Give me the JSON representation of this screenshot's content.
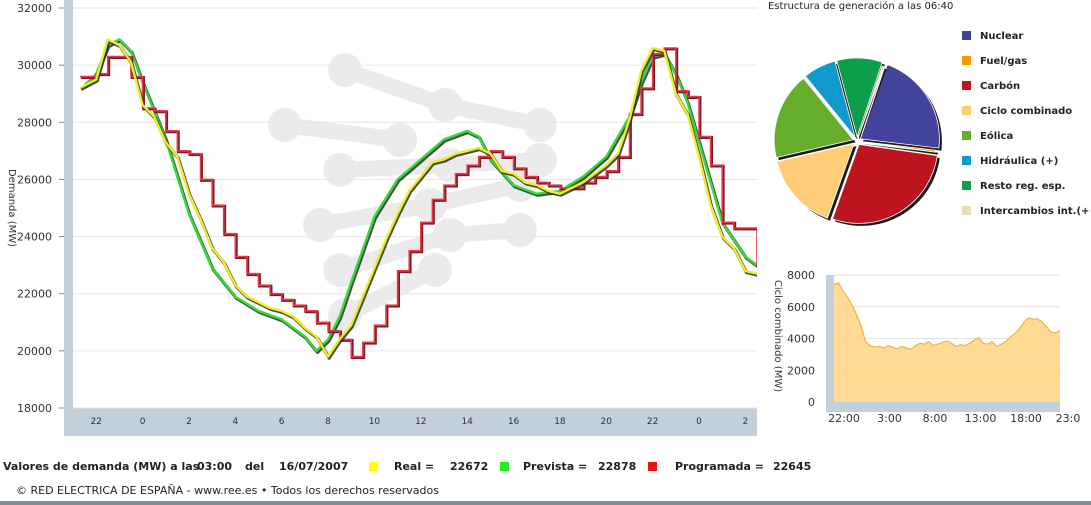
{
  "chart_data": [
    {
      "type": "line",
      "ylabel": "Demanda (MW)",
      "ylim": [
        18000,
        32000
      ],
      "yticks": [
        18000,
        20000,
        22000,
        24000,
        26000,
        28000,
        30000,
        32000
      ],
      "xlim": [
        21,
        50.5
      ],
      "xtick_positions": [
        22,
        24,
        26,
        28,
        30,
        32,
        34,
        36,
        38,
        40,
        42,
        44,
        46,
        48,
        50
      ],
      "xtick_labels": [
        "22",
        "0",
        "2",
        "4",
        "6",
        "8",
        "10",
        "12",
        "14",
        "16",
        "18",
        "20",
        "22",
        "0",
        "2"
      ],
      "series": [
        {
          "name": "Prevista",
          "color": "#33dd33",
          "x": [
            21.5,
            22,
            22.5,
            23,
            23.5,
            24,
            24.5,
            25,
            26,
            27,
            28,
            29,
            30,
            31,
            31.5,
            32,
            32.5,
            33,
            34,
            35,
            36,
            37,
            38,
            38.5,
            39,
            40,
            41,
            42,
            43,
            44,
            45,
            45.5,
            46,
            46.5,
            47,
            47.5,
            48,
            48.5,
            49,
            50,
            50.5
          ],
          "y": [
            29300,
            29700,
            30700,
            30900,
            30500,
            29400,
            28400,
            27400,
            24800,
            22900,
            21900,
            21400,
            21100,
            20500,
            20000,
            20400,
            21200,
            22400,
            24700,
            26000,
            26700,
            27400,
            27700,
            27500,
            26700,
            25800,
            25500,
            25600,
            26100,
            26800,
            28200,
            29400,
            30300,
            30400,
            29700,
            28700,
            27300,
            25900,
            24500,
            23300,
            23000
          ]
        },
        {
          "name": "Programada",
          "color": "#e8394b",
          "step": true,
          "x": [
            21.3,
            22,
            22.5,
            23.5,
            24,
            24.5,
            25,
            25.5,
            26,
            26.5,
            27,
            27.5,
            28,
            28.5,
            29,
            29.5,
            30,
            30.5,
            31,
            31.5,
            32,
            32.5,
            33,
            33.5,
            34,
            34.5,
            35,
            35.5,
            36,
            36.5,
            37,
            37.5,
            38,
            38.5,
            39,
            39.5,
            40,
            40.5,
            41,
            41.5,
            42,
            42.5,
            43,
            43.5,
            44,
            44.5,
            45,
            45.5,
            46,
            46.5,
            47,
            47.5,
            48,
            48.5,
            49,
            49.5,
            50.5
          ],
          "y": [
            29600,
            29700,
            30300,
            29600,
            28500,
            28400,
            27700,
            27000,
            26900,
            26000,
            25100,
            24100,
            23300,
            22700,
            22300,
            22000,
            21800,
            21600,
            21400,
            21000,
            20700,
            20400,
            19800,
            20300,
            20900,
            21600,
            22800,
            23500,
            24500,
            25300,
            25800,
            26200,
            26500,
            26800,
            27000,
            26800,
            26400,
            26100,
            25900,
            25800,
            25700,
            25700,
            25900,
            26100,
            26300,
            26800,
            28300,
            29200,
            30400,
            30600,
            29100,
            28900,
            27500,
            26500,
            24500,
            24300,
            23000
          ]
        },
        {
          "name": "Real",
          "color": "#eeee22",
          "x": [
            21.3,
            22,
            22.5,
            23,
            23.5,
            24,
            24.5,
            25,
            25.5,
            26,
            26.5,
            27,
            27.5,
            28,
            28.5,
            29,
            29.5,
            30,
            30.5,
            31,
            31.5,
            32,
            32.5,
            33,
            33.5,
            34,
            34.5,
            35,
            35.5,
            36,
            36.5,
            37,
            37.5,
            38,
            38.5,
            39,
            39.5,
            40,
            40.5,
            41,
            41.5,
            42,
            42.5,
            43,
            43.5,
            44,
            44.5,
            45,
            45.5,
            46,
            46.5,
            47,
            47.5,
            48,
            48.5,
            49,
            49.5,
            50,
            50.5
          ],
          "y": [
            29200,
            29500,
            30900,
            30700,
            30100,
            28600,
            28200,
            27300,
            26800,
            25500,
            24600,
            23600,
            23100,
            22300,
            21900,
            21700,
            21500,
            21400,
            21200,
            20800,
            20500,
            19800,
            20400,
            20900,
            21900,
            22900,
            23900,
            24800,
            25600,
            26100,
            26600,
            26700,
            26900,
            27000,
            27100,
            26900,
            26300,
            26200,
            25900,
            25800,
            25600,
            25500,
            25700,
            25900,
            26200,
            26500,
            26900,
            28100,
            29800,
            30600,
            30500,
            29000,
            28300,
            26800,
            25100,
            24000,
            23600,
            22800,
            22700
          ]
        }
      ]
    },
    {
      "type": "pie",
      "title": "Estructura de generación a las 06:40",
      "legend_position": "right",
      "slices": [
        {
          "label": "Nuclear",
          "value": 21.3,
          "color": "#43439b"
        },
        {
          "label": "Fuel/gas",
          "value": 0.4,
          "color": "#ff9900"
        },
        {
          "label": "Carbón",
          "value": 28.2,
          "color": "#be1420"
        },
        {
          "label": "Ciclo combinado",
          "value": 15.9,
          "color": "#ffcc77"
        },
        {
          "label": "Eólica",
          "value": 17.8,
          "color": "#66ad2b"
        },
        {
          "label": "Hidráulica (+)",
          "value": 6.7,
          "color": "#1099cc"
        },
        {
          "label": "Resto reg. esp.",
          "value": 9.3,
          "color": "#0c9e48"
        },
        {
          "label": "Intercambios int.(+)",
          "value": 0.4,
          "color": "#e8dcb5"
        }
      ]
    },
    {
      "type": "area",
      "ylabel": "Ciclo combinado (MW)",
      "color": "#ffd27a",
      "ylim": [
        0,
        8000
      ],
      "yticks": [
        0,
        2000,
        4000,
        6000,
        8000
      ],
      "xlim": [
        20.5,
        45.5
      ],
      "xtick_positions": [
        22,
        27,
        32,
        37,
        42,
        47
      ],
      "xtick_labels": [
        "22:00",
        "3:00",
        "8:00",
        "13:00",
        "18:00",
        "23:00"
      ],
      "x": [
        20.5,
        21,
        21.5,
        22,
        22.5,
        23,
        23.5,
        24,
        24.5,
        25,
        25.5,
        26,
        26.5,
        27,
        27.5,
        28,
        28.5,
        29,
        29.5,
        30,
        30.5,
        31,
        31.5,
        32,
        32.5,
        33,
        33.5,
        34,
        34.5,
        35,
        35.5,
        36,
        36.5,
        37,
        37.5,
        38,
        38.5,
        39,
        39.5,
        40,
        40.5,
        41,
        41.5,
        42,
        42.5,
        43,
        43.5,
        44,
        44.5,
        45,
        45.5
      ],
      "y": [
        7400,
        7500,
        7000,
        6600,
        6100,
        5500,
        4800,
        3800,
        3550,
        3450,
        3500,
        3400,
        3550,
        3450,
        3350,
        3500,
        3400,
        3300,
        3550,
        3700,
        3650,
        3800,
        3550,
        3650,
        3750,
        3850,
        3700,
        3500,
        3600,
        3550,
        3700,
        3900,
        4050,
        3700,
        3650,
        3800,
        3500,
        3650,
        3800,
        4100,
        4300,
        4600,
        5000,
        5300,
        5200,
        5250,
        5050,
        4750,
        4400,
        4350,
        4500
      ]
    }
  ],
  "status": {
    "label": "Valores de demanda (MW) a las",
    "time": "03:00",
    "del": "del",
    "date": "16/07/2007",
    "real_label": "Real =",
    "real_value": "22672",
    "real_color": "#ffff00",
    "prevista_label": "Prevista =",
    "prevista_value": "22878",
    "prevista_color": "#22ee22",
    "programada_label": "Programada =",
    "programada_value": "22645",
    "programada_color": "#ee1111"
  },
  "footer": "© RED ELECTRICA DE ESPAÑA - www.ree.es • Todos los derechos reservados"
}
